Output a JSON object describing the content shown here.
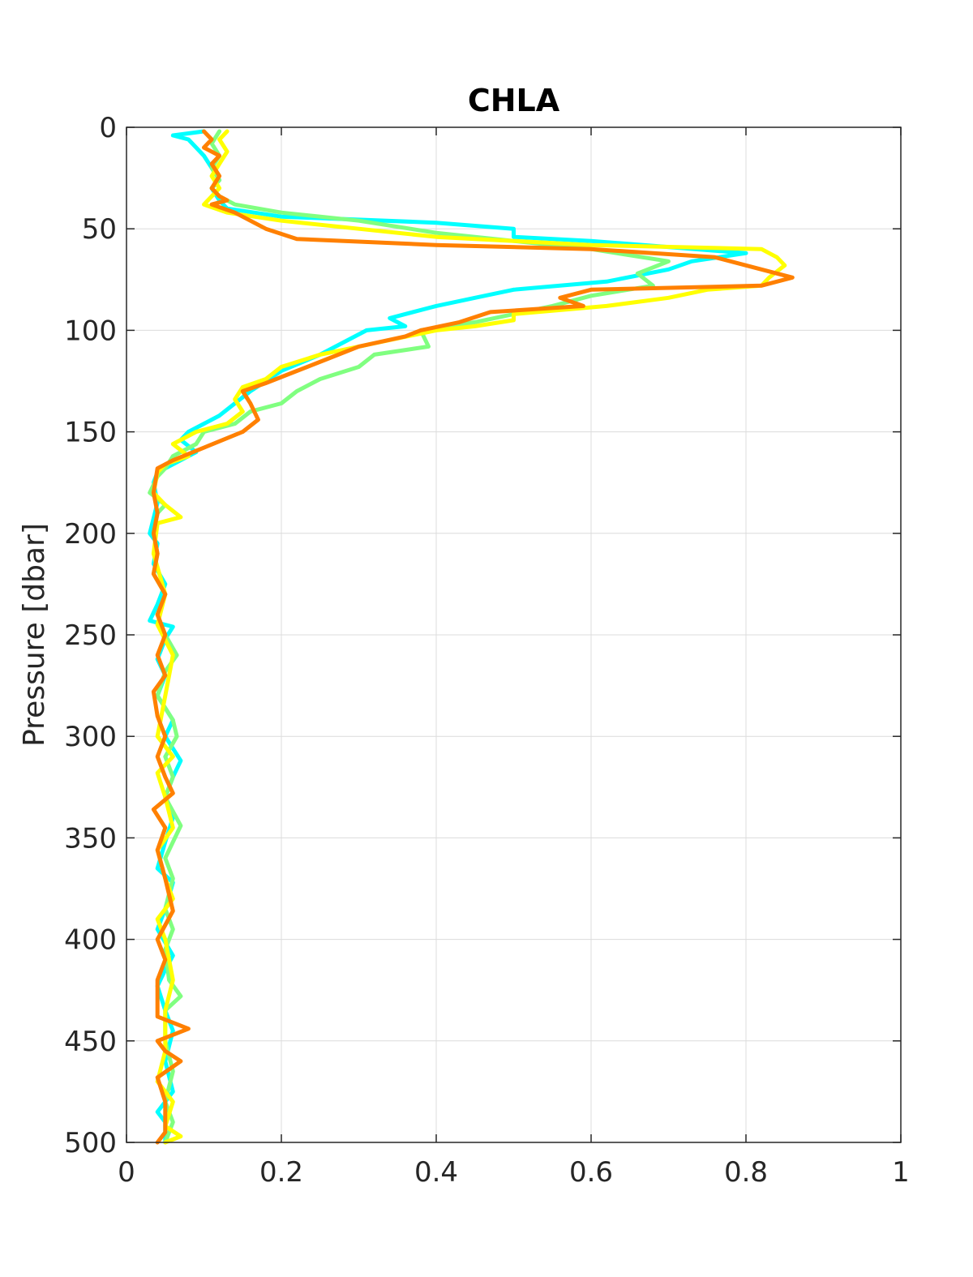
{
  "chart_data": {
    "type": "line",
    "title": "CHLA",
    "xlabel": "",
    "ylabel": "Pressure [dbar]",
    "xlim": [
      0,
      1
    ],
    "ylim": [
      0,
      500
    ],
    "y_reversed": true,
    "grid": true,
    "xticks": [
      "0",
      "0.2",
      "0.4",
      "0.6",
      "0.8",
      "1"
    ],
    "yticks": [
      "0",
      "50",
      "100",
      "150",
      "200",
      "250",
      "300",
      "350",
      "400",
      "450",
      "500"
    ],
    "series": [
      {
        "color": "#00ffff",
        "points": [
          [
            0.1,
            2
          ],
          [
            0.06,
            4
          ],
          [
            0.08,
            6
          ],
          [
            0.09,
            10
          ],
          [
            0.1,
            14
          ],
          [
            0.11,
            20
          ],
          [
            0.12,
            26
          ],
          [
            0.11,
            30
          ],
          [
            0.12,
            36
          ],
          [
            0.13,
            40
          ],
          [
            0.2,
            44
          ],
          [
            0.4,
            47
          ],
          [
            0.5,
            50
          ],
          [
            0.5,
            54
          ],
          [
            0.6,
            56
          ],
          [
            0.8,
            62
          ],
          [
            0.73,
            66
          ],
          [
            0.7,
            70
          ],
          [
            0.62,
            76
          ],
          [
            0.5,
            80
          ],
          [
            0.45,
            84
          ],
          [
            0.4,
            88
          ],
          [
            0.34,
            94
          ],
          [
            0.36,
            98
          ],
          [
            0.31,
            100
          ],
          [
            0.28,
            106
          ],
          [
            0.25,
            112
          ],
          [
            0.2,
            120
          ],
          [
            0.16,
            130
          ],
          [
            0.14,
            136
          ],
          [
            0.12,
            142
          ],
          [
            0.1,
            146
          ],
          [
            0.08,
            150
          ],
          [
            0.07,
            154
          ],
          [
            0.09,
            160
          ],
          [
            0.06,
            166
          ],
          [
            0.04,
            170
          ],
          [
            0.035,
            175
          ],
          [
            0.04,
            185
          ],
          [
            0.03,
            200
          ],
          [
            0.04,
            205
          ],
          [
            0.035,
            215
          ],
          [
            0.05,
            225
          ],
          [
            0.04,
            235
          ],
          [
            0.03,
            243
          ],
          [
            0.06,
            246
          ],
          [
            0.05,
            252
          ],
          [
            0.04,
            262
          ],
          [
            0.05,
            270
          ],
          [
            0.04,
            280
          ],
          [
            0.06,
            292
          ],
          [
            0.05,
            300
          ],
          [
            0.07,
            312
          ],
          [
            0.06,
            320
          ],
          [
            0.05,
            330
          ],
          [
            0.06,
            340
          ],
          [
            0.05,
            352
          ],
          [
            0.04,
            365
          ],
          [
            0.06,
            372
          ],
          [
            0.05,
            385
          ],
          [
            0.04,
            395
          ],
          [
            0.06,
            408
          ],
          [
            0.05,
            415
          ],
          [
            0.04,
            423
          ],
          [
            0.05,
            435
          ],
          [
            0.06,
            445
          ],
          [
            0.05,
            460
          ],
          [
            0.06,
            475
          ],
          [
            0.04,
            485
          ],
          [
            0.05,
            490
          ],
          [
            0.05,
            500
          ]
        ]
      },
      {
        "color": "#80ff80",
        "points": [
          [
            0.12,
            2
          ],
          [
            0.11,
            8
          ],
          [
            0.12,
            14
          ],
          [
            0.11,
            20
          ],
          [
            0.12,
            26
          ],
          [
            0.11,
            30
          ],
          [
            0.12,
            34
          ],
          [
            0.14,
            38
          ],
          [
            0.2,
            42
          ],
          [
            0.3,
            46
          ],
          [
            0.4,
            52
          ],
          [
            0.5,
            56
          ],
          [
            0.6,
            60
          ],
          [
            0.7,
            66
          ],
          [
            0.66,
            72
          ],
          [
            0.68,
            78
          ],
          [
            0.6,
            83
          ],
          [
            0.55,
            88
          ],
          [
            0.5,
            92
          ],
          [
            0.45,
            96
          ],
          [
            0.38,
            100
          ],
          [
            0.39,
            108
          ],
          [
            0.32,
            112
          ],
          [
            0.3,
            118
          ],
          [
            0.25,
            124
          ],
          [
            0.22,
            130
          ],
          [
            0.2,
            136
          ],
          [
            0.16,
            140
          ],
          [
            0.14,
            146
          ],
          [
            0.1,
            150
          ],
          [
            0.09,
            156
          ],
          [
            0.06,
            162
          ],
          [
            0.05,
            168
          ],
          [
            0.04,
            172
          ],
          [
            0.03,
            180
          ],
          [
            0.05,
            186
          ],
          [
            0.04,
            190
          ],
          [
            0.035,
            200
          ],
          [
            0.04,
            210
          ],
          [
            0.035,
            220
          ],
          [
            0.05,
            230
          ],
          [
            0.04,
            240
          ],
          [
            0.05,
            250
          ],
          [
            0.065,
            260
          ],
          [
            0.05,
            268
          ],
          [
            0.04,
            280
          ],
          [
            0.06,
            292
          ],
          [
            0.065,
            300
          ],
          [
            0.05,
            310
          ],
          [
            0.06,
            320
          ],
          [
            0.05,
            330
          ],
          [
            0.07,
            344
          ],
          [
            0.06,
            352
          ],
          [
            0.05,
            360
          ],
          [
            0.06,
            370
          ],
          [
            0.05,
            385
          ],
          [
            0.06,
            395
          ],
          [
            0.05,
            405
          ],
          [
            0.055,
            420
          ],
          [
            0.07,
            428
          ],
          [
            0.05,
            435
          ],
          [
            0.05,
            450
          ],
          [
            0.06,
            465
          ],
          [
            0.05,
            480
          ],
          [
            0.06,
            490
          ],
          [
            0.05,
            500
          ]
        ]
      },
      {
        "color": "#ffff00",
        "points": [
          [
            0.13,
            2
          ],
          [
            0.12,
            6
          ],
          [
            0.13,
            12
          ],
          [
            0.12,
            18
          ],
          [
            0.11,
            24
          ],
          [
            0.12,
            30
          ],
          [
            0.11,
            34
          ],
          [
            0.1,
            38
          ],
          [
            0.13,
            42
          ],
          [
            0.2,
            46
          ],
          [
            0.3,
            50
          ],
          [
            0.4,
            54
          ],
          [
            0.6,
            58
          ],
          [
            0.82,
            60
          ],
          [
            0.84,
            64
          ],
          [
            0.85,
            68
          ],
          [
            0.83,
            74
          ],
          [
            0.82,
            78
          ],
          [
            0.75,
            80
          ],
          [
            0.7,
            84
          ],
          [
            0.62,
            88
          ],
          [
            0.5,
            92
          ],
          [
            0.5,
            95
          ],
          [
            0.45,
            98
          ],
          [
            0.4,
            100
          ],
          [
            0.3,
            108
          ],
          [
            0.25,
            112
          ],
          [
            0.2,
            118
          ],
          [
            0.18,
            124
          ],
          [
            0.15,
            128
          ],
          [
            0.14,
            134
          ],
          [
            0.15,
            140
          ],
          [
            0.13,
            146
          ],
          [
            0.09,
            150
          ],
          [
            0.06,
            156
          ],
          [
            0.08,
            162
          ],
          [
            0.05,
            166
          ],
          [
            0.04,
            170
          ],
          [
            0.035,
            180
          ],
          [
            0.05,
            186
          ],
          [
            0.07,
            192
          ],
          [
            0.04,
            195
          ],
          [
            0.035,
            210
          ],
          [
            0.05,
            230
          ],
          [
            0.04,
            245
          ],
          [
            0.06,
            260
          ],
          [
            0.05,
            280
          ],
          [
            0.04,
            300
          ],
          [
            0.06,
            310
          ],
          [
            0.04,
            318
          ],
          [
            0.05,
            330
          ],
          [
            0.06,
            345
          ],
          [
            0.04,
            356
          ],
          [
            0.05,
            370
          ],
          [
            0.06,
            380
          ],
          [
            0.04,
            390
          ],
          [
            0.05,
            400
          ],
          [
            0.06,
            420
          ],
          [
            0.05,
            435
          ],
          [
            0.05,
            455
          ],
          [
            0.04,
            470
          ],
          [
            0.06,
            480
          ],
          [
            0.05,
            492
          ],
          [
            0.07,
            497
          ],
          [
            0.05,
            500
          ]
        ]
      },
      {
        "color": "#ff8000",
        "points": [
          [
            0.1,
            2
          ],
          [
            0.11,
            6
          ],
          [
            0.1,
            10
          ],
          [
            0.12,
            14
          ],
          [
            0.11,
            18
          ],
          [
            0.12,
            24
          ],
          [
            0.11,
            30
          ],
          [
            0.12,
            34
          ],
          [
            0.13,
            36
          ],
          [
            0.11,
            38
          ],
          [
            0.14,
            42
          ],
          [
            0.16,
            46
          ],
          [
            0.18,
            50
          ],
          [
            0.22,
            55
          ],
          [
            0.4,
            58
          ],
          [
            0.6,
            60
          ],
          [
            0.76,
            64
          ],
          [
            0.8,
            68
          ],
          [
            0.86,
            74
          ],
          [
            0.82,
            78
          ],
          [
            0.6,
            80
          ],
          [
            0.56,
            84
          ],
          [
            0.59,
            88
          ],
          [
            0.47,
            91
          ],
          [
            0.43,
            96
          ],
          [
            0.38,
            100
          ],
          [
            0.36,
            103
          ],
          [
            0.3,
            108
          ],
          [
            0.26,
            114
          ],
          [
            0.22,
            120
          ],
          [
            0.18,
            126
          ],
          [
            0.15,
            130
          ],
          [
            0.16,
            136
          ],
          [
            0.17,
            144
          ],
          [
            0.15,
            150
          ],
          [
            0.06,
            164
          ],
          [
            0.04,
            168
          ],
          [
            0.035,
            180
          ],
          [
            0.04,
            190
          ],
          [
            0.035,
            200
          ],
          [
            0.04,
            210
          ],
          [
            0.035,
            220
          ],
          [
            0.05,
            230
          ],
          [
            0.04,
            240
          ],
          [
            0.05,
            250
          ],
          [
            0.04,
            260
          ],
          [
            0.05,
            270
          ],
          [
            0.035,
            278
          ],
          [
            0.04,
            290
          ],
          [
            0.05,
            300
          ],
          [
            0.04,
            310
          ],
          [
            0.05,
            320
          ],
          [
            0.06,
            328
          ],
          [
            0.035,
            336
          ],
          [
            0.05,
            345
          ],
          [
            0.04,
            356
          ],
          [
            0.05,
            370
          ],
          [
            0.06,
            386
          ],
          [
            0.04,
            400
          ],
          [
            0.05,
            410
          ],
          [
            0.04,
            420
          ],
          [
            0.04,
            438
          ],
          [
            0.08,
            444
          ],
          [
            0.04,
            450
          ],
          [
            0.05,
            455
          ],
          [
            0.07,
            460
          ],
          [
            0.04,
            468
          ],
          [
            0.05,
            480
          ],
          [
            0.05,
            495
          ],
          [
            0.04,
            500
          ]
        ]
      }
    ]
  }
}
